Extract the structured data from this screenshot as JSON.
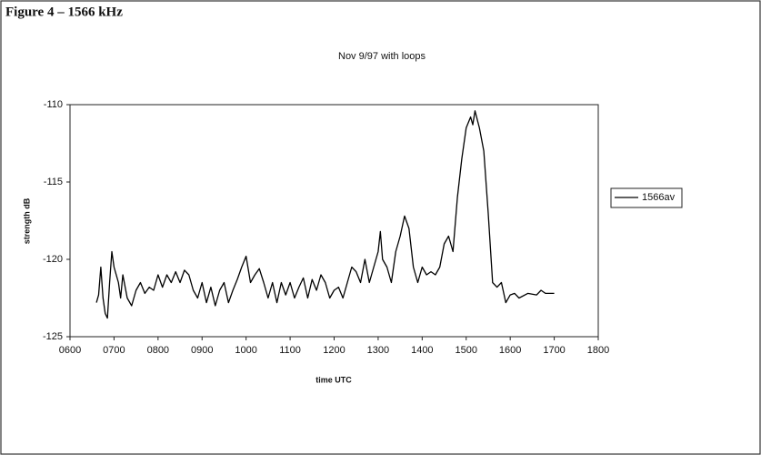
{
  "chart_data": {
    "type": "line",
    "figure_label": "Figure 4 – 1566 kHz",
    "title": "Nov 9/97 with loops",
    "x_label": "time UTC",
    "y_label": "strength dB",
    "xlim": [
      600,
      1800
    ],
    "xticks": [
      {
        "value": 600,
        "label": "0600"
      },
      {
        "value": 700,
        "label": "0700"
      },
      {
        "value": 800,
        "label": "0800"
      },
      {
        "value": 900,
        "label": "0900"
      },
      {
        "value": 1000,
        "label": "1000"
      },
      {
        "value": 1100,
        "label": "1100"
      },
      {
        "value": 1200,
        "label": "1200"
      },
      {
        "value": 1300,
        "label": "1300"
      },
      {
        "value": 1400,
        "label": "1400"
      },
      {
        "value": 1500,
        "label": "1500"
      },
      {
        "value": 1600,
        "label": "1600"
      },
      {
        "value": 1700,
        "label": "1700"
      },
      {
        "value": 1800,
        "label": "1800"
      }
    ],
    "ylim": [
      -125,
      -110
    ],
    "yticks": [
      -110,
      -115,
      -120,
      -125
    ],
    "legend": "right",
    "x": [
      660,
      665,
      670,
      675,
      680,
      685,
      690,
      695,
      700,
      710,
      715,
      720,
      730,
      740,
      750,
      760,
      770,
      780,
      790,
      800,
      810,
      820,
      830,
      840,
      850,
      860,
      870,
      880,
      890,
      900,
      910,
      920,
      930,
      940,
      950,
      960,
      970,
      980,
      990,
      1000,
      1010,
      1020,
      1030,
      1040,
      1050,
      1060,
      1070,
      1080,
      1090,
      1100,
      1110,
      1120,
      1130,
      1140,
      1150,
      1160,
      1170,
      1180,
      1190,
      1200,
      1210,
      1220,
      1230,
      1240,
      1250,
      1260,
      1270,
      1280,
      1290,
      1300,
      1305,
      1310,
      1320,
      1330,
      1340,
      1350,
      1360,
      1370,
      1380,
      1390,
      1400,
      1410,
      1420,
      1430,
      1440,
      1450,
      1460,
      1470,
      1480,
      1490,
      1500,
      1510,
      1515,
      1520,
      1530,
      1540,
      1550,
      1560,
      1570,
      1580,
      1590,
      1600,
      1610,
      1620,
      1640,
      1660,
      1670,
      1680,
      1700
    ],
    "series": [
      {
        "name": "1566av",
        "color": "#000000",
        "values": [
          -122.8,
          -122.3,
          -120.5,
          -122.5,
          -123.5,
          -123.8,
          -121.5,
          -119.5,
          -120.5,
          -121.5,
          -122.5,
          -121,
          -122.5,
          -123,
          -122,
          -121.5,
          -122.2,
          -121.8,
          -122,
          -121,
          -121.8,
          -121,
          -121.5,
          -120.8,
          -121.5,
          -120.7,
          -121,
          -122,
          -122.5,
          -121.5,
          -122.8,
          -121.8,
          -123,
          -122,
          -121.5,
          -122.8,
          -122,
          -121.3,
          -120.5,
          -119.8,
          -121.5,
          -121,
          -120.6,
          -121.5,
          -122.5,
          -121.5,
          -122.8,
          -121.5,
          -122.3,
          -121.5,
          -122.5,
          -121.8,
          -121.2,
          -122.5,
          -121.3,
          -122,
          -121,
          -121.5,
          -122.5,
          -122,
          -121.8,
          -122.5,
          -121.5,
          -120.5,
          -120.8,
          -121.5,
          -120,
          -121.5,
          -120.5,
          -119.5,
          -118.2,
          -120,
          -120.5,
          -121.5,
          -119.5,
          -118.5,
          -117.2,
          -118,
          -120.5,
          -121.5,
          -120.5,
          -121,
          -120.8,
          -121,
          -120.5,
          -119,
          -118.5,
          -119.5,
          -116,
          -113.5,
          -111.5,
          -110.8,
          -111.3,
          -110.4,
          -111.5,
          -113,
          -117,
          -121.5,
          -121.8,
          -121.5,
          -122.8,
          -122.3,
          -122.2,
          -122.5,
          -122.2,
          -122.3,
          -122,
          -122.2,
          -122.2
        ]
      }
    ]
  }
}
